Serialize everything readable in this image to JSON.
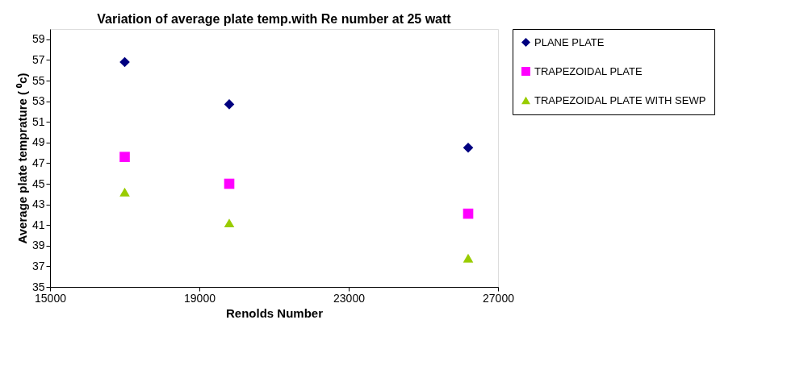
{
  "chart_data": {
    "type": "scatter",
    "title": "Variation of average plate temp.with Re number at 25 watt",
    "xlabel": "Renolds Number",
    "ylabel": "Average plate temprature ( ⁰c)",
    "x": [
      17000,
      19800,
      26200
    ],
    "series": [
      {
        "name": "PLANE PLATE",
        "color": "#000080",
        "marker": "diamond",
        "values": [
          56.8,
          52.7,
          48.5
        ]
      },
      {
        "name": "TRAPEZOIDAL PLATE",
        "color": "#ff00ff",
        "marker": "square",
        "values": [
          47.6,
          45.0,
          42.1
        ]
      },
      {
        "name": "TRAPEZOIDAL PLATE WITH SEWP",
        "color": "#99cc00",
        "marker": "triangle",
        "values": [
          44.2,
          41.2,
          37.8
        ]
      }
    ],
    "xlim": [
      15000,
      27000
    ],
    "xticks": [
      15000,
      19000,
      23000,
      27000
    ],
    "ylim": [
      35,
      60
    ],
    "yticks": [
      35,
      37,
      39,
      41,
      43,
      45,
      47,
      49,
      51,
      53,
      55,
      57,
      59
    ],
    "grid": false,
    "legend": "right"
  }
}
